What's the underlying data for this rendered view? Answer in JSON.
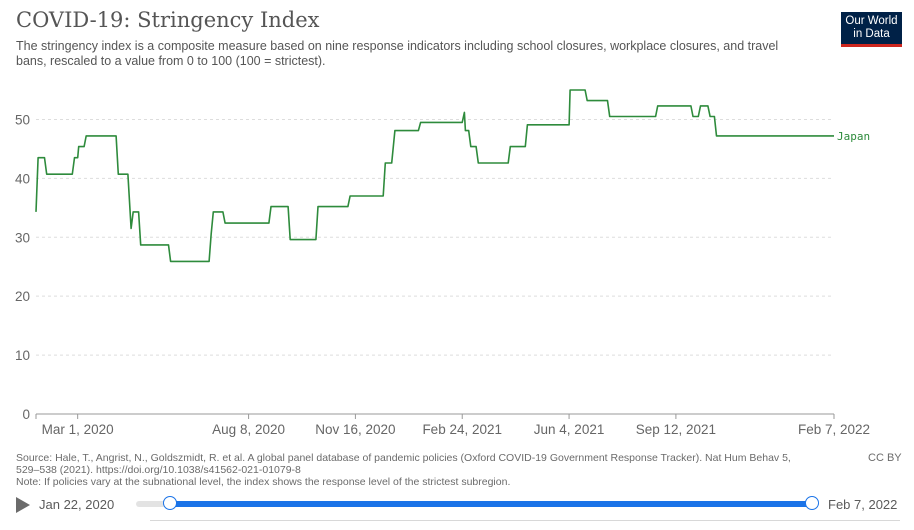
{
  "header": {
    "title": "COVID-19: Stringency Index",
    "subtitle": "The stringency index is a composite measure based on nine response indicators including school closures, workplace closures, and travel bans, rescaled to a value from 0 to 100 (100 = strictest).",
    "logo_line1": "Our World",
    "logo_line2": "in Data"
  },
  "chart_data": {
    "type": "line",
    "title": "COVID-19: Stringency Index",
    "xlabel": "",
    "ylabel": "",
    "ylim": [
      0,
      55
    ],
    "yticks": [
      0,
      10,
      20,
      30,
      40,
      50
    ],
    "xlim": [
      "2020-01-22",
      "2022-02-07"
    ],
    "xticks": [
      {
        "date": "2020-03-01",
        "label": "Mar 1, 2020"
      },
      {
        "date": "2020-08-08",
        "label": "Aug 8, 2020"
      },
      {
        "date": "2020-11-16",
        "label": "Nov 16, 2020"
      },
      {
        "date": "2021-02-24",
        "label": "Feb 24, 2021"
      },
      {
        "date": "2021-06-04",
        "label": "Jun 4, 2021"
      },
      {
        "date": "2021-09-12",
        "label": "Sep 12, 2021"
      },
      {
        "date": "2022-02-07",
        "label": "Feb 7, 2022"
      }
    ],
    "grid": "horizontal-dashed",
    "series": [
      {
        "name": "Japan",
        "color": "#2e8b3c",
        "points": [
          [
            "2020-01-22",
            34.3
          ],
          [
            "2020-01-24",
            43.5
          ],
          [
            "2020-01-30",
            43.5
          ],
          [
            "2020-02-01",
            40.7
          ],
          [
            "2020-02-25",
            40.7
          ],
          [
            "2020-02-27",
            43.5
          ],
          [
            "2020-03-01",
            43.5
          ],
          [
            "2020-03-02",
            45.4
          ],
          [
            "2020-03-07",
            45.4
          ],
          [
            "2020-03-09",
            47.2
          ],
          [
            "2020-04-06",
            47.2
          ],
          [
            "2020-04-08",
            40.7
          ],
          [
            "2020-04-17",
            40.7
          ],
          [
            "2020-04-20",
            31.5
          ],
          [
            "2020-04-22",
            34.3
          ],
          [
            "2020-04-27",
            34.3
          ],
          [
            "2020-04-29",
            28.7
          ],
          [
            "2020-05-25",
            28.7
          ],
          [
            "2020-05-27",
            25.9
          ],
          [
            "2020-07-02",
            25.9
          ],
          [
            "2020-07-04",
            30.6
          ],
          [
            "2020-07-06",
            34.3
          ],
          [
            "2020-07-15",
            34.3
          ],
          [
            "2020-07-17",
            32.4
          ],
          [
            "2020-08-27",
            32.4
          ],
          [
            "2020-08-29",
            35.2
          ],
          [
            "2020-09-14",
            35.2
          ],
          [
            "2020-09-16",
            29.6
          ],
          [
            "2020-10-10",
            29.6
          ],
          [
            "2020-10-12",
            35.2
          ],
          [
            "2020-11-09",
            35.2
          ],
          [
            "2020-11-11",
            37.0
          ],
          [
            "2020-12-12",
            37.0
          ],
          [
            "2020-12-14",
            42.6
          ],
          [
            "2020-12-20",
            42.6
          ],
          [
            "2020-12-23",
            48.1
          ],
          [
            "2021-01-14",
            48.1
          ],
          [
            "2021-01-16",
            49.5
          ],
          [
            "2021-02-24",
            49.5
          ],
          [
            "2021-02-26",
            51.2
          ],
          [
            "2021-02-27",
            48.1
          ],
          [
            "2021-03-02",
            48.1
          ],
          [
            "2021-03-04",
            45.4
          ],
          [
            "2021-03-09",
            45.4
          ],
          [
            "2021-03-11",
            42.6
          ],
          [
            "2021-04-08",
            42.6
          ],
          [
            "2021-04-10",
            45.4
          ],
          [
            "2021-04-24",
            45.4
          ],
          [
            "2021-04-26",
            49.1
          ],
          [
            "2021-06-04",
            49.1
          ],
          [
            "2021-06-05",
            55.0
          ],
          [
            "2021-06-19",
            55.0
          ],
          [
            "2021-06-21",
            53.2
          ],
          [
            "2021-07-10",
            53.2
          ],
          [
            "2021-07-12",
            50.5
          ],
          [
            "2021-08-24",
            50.5
          ],
          [
            "2021-08-26",
            52.3
          ],
          [
            "2021-09-26",
            52.3
          ],
          [
            "2021-09-28",
            50.5
          ],
          [
            "2021-10-03",
            50.5
          ],
          [
            "2021-10-05",
            52.3
          ],
          [
            "2021-10-12",
            52.3
          ],
          [
            "2021-10-14",
            50.5
          ],
          [
            "2021-10-18",
            50.5
          ],
          [
            "2021-10-20",
            47.2
          ],
          [
            "2022-02-07",
            47.2
          ]
        ]
      }
    ]
  },
  "footer": {
    "source": "Source: Hale, T., Angrist, N., Goldszmidt, R. et al. A global panel database of pandemic policies (Oxford COVID-19 Government Response Tracker). Nat Hum Behav 5, 529–538 (2021). https://doi.org/10.1038/s41562-021-01079-8",
    "note": "Note: If policies vary at the subnational level, the index shows the response level of the strictest subregion.",
    "license": "CC BY"
  },
  "timeline": {
    "start_label": "Jan 22, 2020",
    "end_label": "Feb 7, 2022"
  }
}
